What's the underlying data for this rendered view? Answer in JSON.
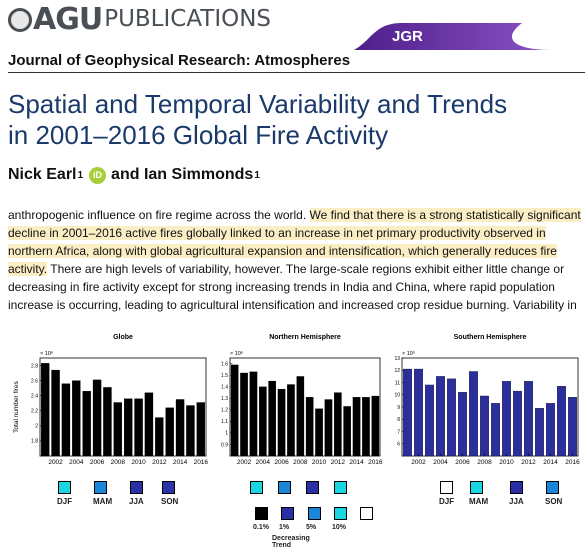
{
  "header": {
    "agu": "AGU",
    "publications": "PUBLICATIONS",
    "journal_tab": "JGR",
    "journal_name": "Journal of Geophysical Research: Atmospheres"
  },
  "paper": {
    "title_line1": "Spatial and Temporal Variability and Trends",
    "title_line2": "in 2001–2016 Global Fire Activity",
    "author1": "Nick Earl",
    "author1_aff": "1",
    "orcid_label": "iD",
    "connector": "and",
    "author2": "Ian Simmonds",
    "author2_aff": "1",
    "abstract_pre": "anthropogenic influence on fire regime across the world. ",
    "abstract_highlight": "We find that there is a strong statistically significant decline in 2001–2016 active fires globally linked to an increase in net primary productivity observed in northern Africa, along with global agricultural expansion and intensification, which generally reduces fire activity.",
    "abstract_post": " There are high levels of variability, however. The large-scale regions exhibit either little change or decreasing in fire activity except for strong increasing trends in India and China, where rapid population increase is occurring, leading to agricultural intensification and increased crop residue burning. Variability in"
  },
  "chart_data": [
    {
      "type": "bar",
      "title": "Globe",
      "ylabel": "Total number fires",
      "exponent": "× 10⁶",
      "x": [
        2001,
        2002,
        2003,
        2004,
        2005,
        2006,
        2007,
        2008,
        2009,
        2010,
        2011,
        2012,
        2013,
        2014,
        2015,
        2016
      ],
      "values": [
        2.83,
        2.74,
        2.56,
        2.6,
        2.46,
        2.61,
        2.51,
        2.31,
        2.36,
        2.36,
        2.44,
        2.11,
        2.24,
        2.35,
        2.27,
        2.31
      ],
      "ylim": [
        1.6,
        2.9
      ],
      "yticks": [
        "1.8",
        "2",
        "2.2",
        "2.4",
        "2.6",
        "2.8"
      ],
      "xticks": [
        "2002",
        "2004",
        "2006",
        "2008",
        "2010",
        "2012",
        "2014",
        "2016"
      ],
      "bar_color": "#000000"
    },
    {
      "type": "bar",
      "title": "Northern Hemisphere",
      "exponent": "× 10⁶",
      "x": [
        2001,
        2002,
        2003,
        2004,
        2005,
        2006,
        2007,
        2008,
        2009,
        2010,
        2011,
        2012,
        2013,
        2014,
        2015,
        2016
      ],
      "values": [
        1.59,
        1.52,
        1.53,
        1.4,
        1.45,
        1.38,
        1.42,
        1.49,
        1.31,
        1.21,
        1.29,
        1.35,
        1.23,
        1.31,
        1.31,
        1.32
      ],
      "ylim": [
        0.8,
        1.65
      ],
      "yticks": [
        "0.9",
        "1",
        "1.1",
        "1.2",
        "1.3",
        "1.4",
        "1.5",
        "1.6"
      ],
      "xticks": [
        "2002",
        "2004",
        "2006",
        "2008",
        "2010",
        "2012",
        "2014",
        "2016"
      ],
      "bar_color": "#000000"
    },
    {
      "type": "bar",
      "title": "Southern Hemisphere",
      "exponent": "× 10⁵",
      "x": [
        2001,
        2002,
        2003,
        2004,
        2005,
        2006,
        2007,
        2008,
        2009,
        2010,
        2011,
        2012,
        2013,
        2014,
        2015,
        2016
      ],
      "values": [
        12.1,
        12.1,
        10.8,
        11.5,
        11.3,
        10.2,
        11.9,
        9.9,
        9.3,
        11.1,
        10.3,
        11.1,
        8.9,
        9.3,
        10.7,
        9.8
      ],
      "ylim": [
        5.0,
        13.0
      ],
      "yticks": [
        "6",
        "7",
        "8",
        "9",
        "10",
        "11",
        "12",
        "13"
      ],
      "xticks": [
        "2002",
        "2004",
        "2006",
        "2008",
        "2010",
        "2012",
        "2014",
        "2016"
      ],
      "bar_color": "#2b2f9c"
    }
  ],
  "legends": {
    "globe": [
      {
        "label": "DJF",
        "color": "#19d6e0"
      },
      {
        "label": "MAM",
        "color": "#1a86d8"
      },
      {
        "label": "JJA",
        "color": "#2a2fa3"
      },
      {
        "label": "SON",
        "color": "#2b34a8"
      }
    ],
    "nh_top": [
      {
        "color": "#19d6e0"
      },
      {
        "color": "#1a86d8"
      },
      {
        "color": "#2a2fa3"
      },
      {
        "color": "#19d6e0"
      }
    ],
    "trend": [
      {
        "label": "0.1%",
        "color": "#000000"
      },
      {
        "label": "1%",
        "color": "#2a2fa3"
      },
      {
        "label": "5%",
        "color": "#1a86d8"
      },
      {
        "label": "10%",
        "color": "#19d6e0"
      },
      {
        "label": "",
        "color": "#ffffff"
      }
    ],
    "trend_caption": "Decreasing Trend",
    "sh": [
      {
        "label": "DJF",
        "color": "#ffffff"
      },
      {
        "label": "MAM",
        "color": "#19d6e0"
      },
      {
        "label": "JJA",
        "color": "#2a2fa3"
      },
      {
        "label": "SON",
        "color": "#1a86d8"
      }
    ]
  }
}
